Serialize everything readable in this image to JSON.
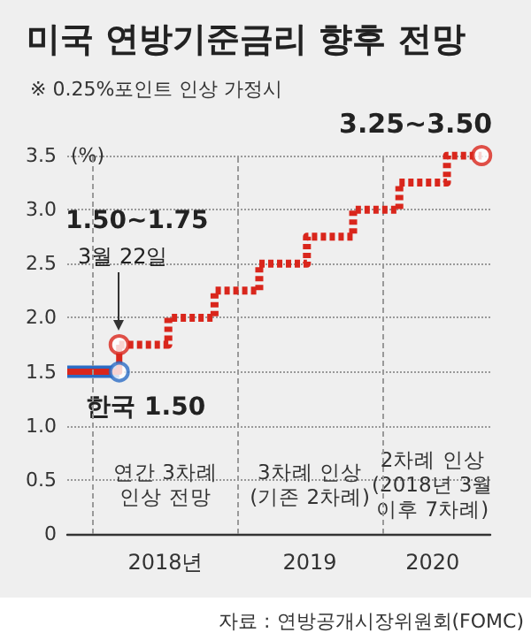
{
  "chart_data": {
    "type": "step",
    "title": "미국 연방기준금리 향후 전망",
    "subtitle": "※ 0.25%포인트 인상 가정시",
    "ylabel": "(%)",
    "xlim": [
      2017.82,
      2020.75
    ],
    "xticks": [
      {
        "value": 2018.5,
        "label": "2018년"
      },
      {
        "value": 2019.5,
        "label": "2019"
      },
      {
        "value": 2020.35,
        "label": "2020"
      }
    ],
    "ylim": [
      0,
      3.5
    ],
    "yticks": [
      0,
      0.5,
      {
        "value": 1,
        "label": "1.0"
      },
      1.5,
      {
        "value": 2,
        "label": "2.0"
      },
      2.5,
      {
        "value": 3,
        "label": "3.0"
      },
      3.5
    ],
    "grid": "y",
    "series": [
      {
        "color": "#2b6cc4",
        "line_style": "solid",
        "x": [
          2017.82,
          2018.18
        ],
        "values": [
          1.5,
          1.5
        ]
      },
      {
        "color": "#d9261c",
        "line_style": "solid",
        "x": [
          2017.82,
          2018.18,
          2018.18
        ],
        "values": [
          1.5,
          1.5,
          1.75
        ]
      },
      {
        "color": "#d9261c",
        "line_style": "dotted",
        "x": [
          2018.18,
          2018.52,
          2018.84,
          2019.15,
          2019.48,
          2019.8,
          2020.12,
          2020.45,
          2020.69
        ],
        "values": [
          1.75,
          2.0,
          2.25,
          2.5,
          2.75,
          3.0,
          3.25,
          3.5,
          3.5
        ]
      },
      {
        "type": "scatter",
        "marker": "circle",
        "colors": [
          "#2b6cc4",
          "#d9261c",
          "#d9261c"
        ],
        "x": [
          2018.18,
          2018.18,
          2020.69
        ],
        "values": [
          1.5,
          1.75,
          3.5
        ]
      }
    ],
    "ref_lines": [
      {
        "axis": "x",
        "value": 2018,
        "color": "#999999",
        "line_style": "dotted"
      },
      {
        "axis": "x",
        "value": 2019,
        "color": "#999999",
        "line_style": "dotted"
      },
      {
        "axis": "x",
        "value": 2020,
        "color": "#999999",
        "line_style": "dotted"
      }
    ],
    "annotations": [
      "1.50~1.75",
      "3월 22일",
      {
        "text": "3.25~3.50",
        "x": 2020.69,
        "y": 3.5
      },
      {
        "text": "한국 1.50",
        "x": 2018.18,
        "y": 1.5
      },
      "연간 3차례\n인상 전망",
      "3차례 인상\n(기존 2차례)",
      "2차례 인상\n(2018년 3월\n이후 7차례)",
      "자료 : 연방공개시장위원회(FOMC)"
    ]
  }
}
